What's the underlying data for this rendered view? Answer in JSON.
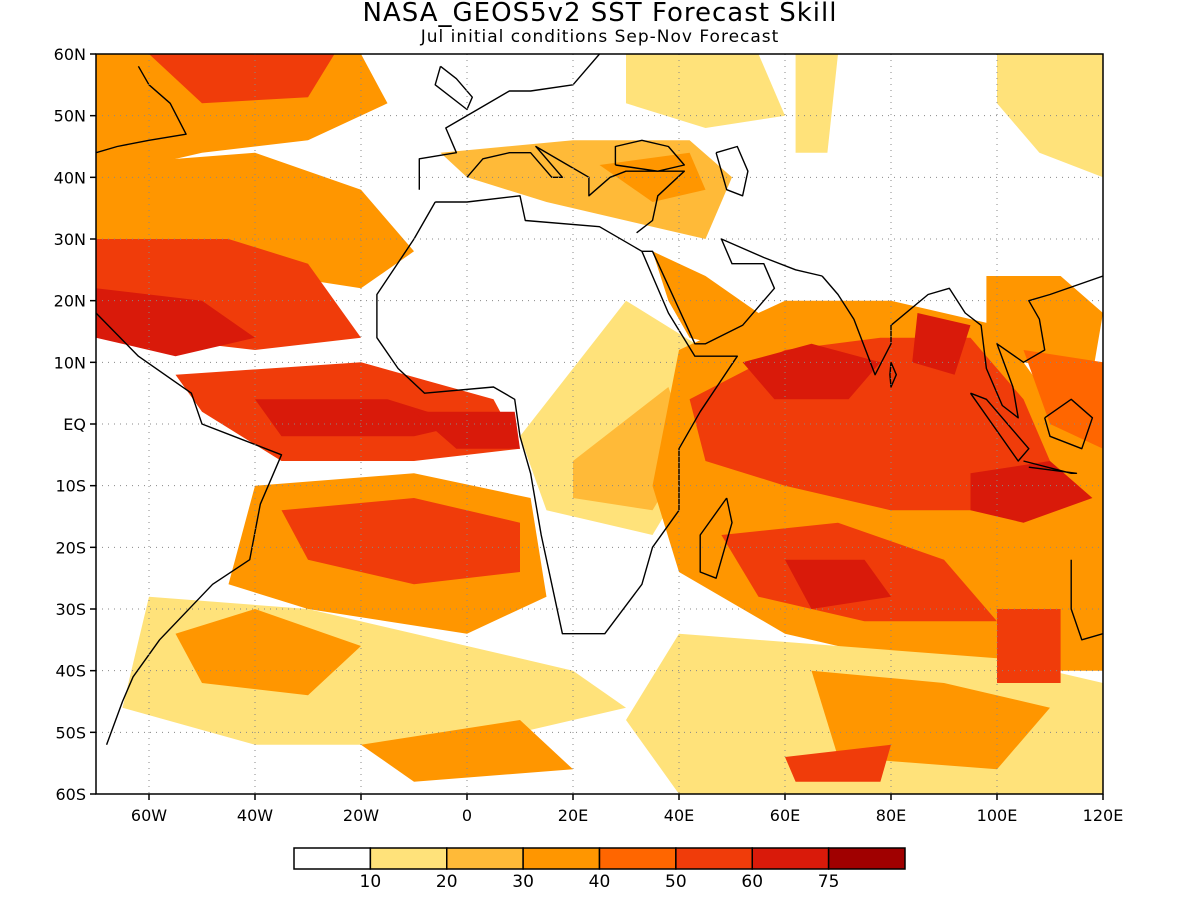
{
  "title": "NASA_GEOS5v2 SST Forecast Skill",
  "subtitle": "Jul initial conditions  Sep-Nov Forecast",
  "map": {
    "lon_range": [
      -70,
      120
    ],
    "lat_range": [
      -60,
      60
    ],
    "lat_ticks": [
      {
        "value": 60,
        "label": "60N"
      },
      {
        "value": 50,
        "label": "50N"
      },
      {
        "value": 40,
        "label": "40N"
      },
      {
        "value": 30,
        "label": "30N"
      },
      {
        "value": 20,
        "label": "20N"
      },
      {
        "value": 10,
        "label": "10N"
      },
      {
        "value": 0,
        "label": "EQ"
      },
      {
        "value": -10,
        "label": "10S"
      },
      {
        "value": -20,
        "label": "20S"
      },
      {
        "value": -30,
        "label": "30S"
      },
      {
        "value": -40,
        "label": "40S"
      },
      {
        "value": -50,
        "label": "50S"
      },
      {
        "value": -60,
        "label": "60S"
      }
    ],
    "lon_ticks": [
      {
        "value": -60,
        "label": "60W"
      },
      {
        "value": -40,
        "label": "40W"
      },
      {
        "value": -20,
        "label": "20W"
      },
      {
        "value": 0,
        "label": "0"
      },
      {
        "value": 20,
        "label": "20E"
      },
      {
        "value": 40,
        "label": "40E"
      },
      {
        "value": 60,
        "label": "60E"
      },
      {
        "value": 80,
        "label": "80E"
      },
      {
        "value": 100,
        "label": "100E"
      },
      {
        "value": 120,
        "label": "120E"
      }
    ],
    "grid": true
  },
  "colorbar": {
    "colors": [
      "#ffffff",
      "#ffe27a",
      "#ffba38",
      "#ff9600",
      "#ff6600",
      "#f03c0a",
      "#d91a0a",
      "#a00000"
    ],
    "labels": [
      "10",
      "20",
      "30",
      "40",
      "50",
      "60",
      "75"
    ]
  }
}
